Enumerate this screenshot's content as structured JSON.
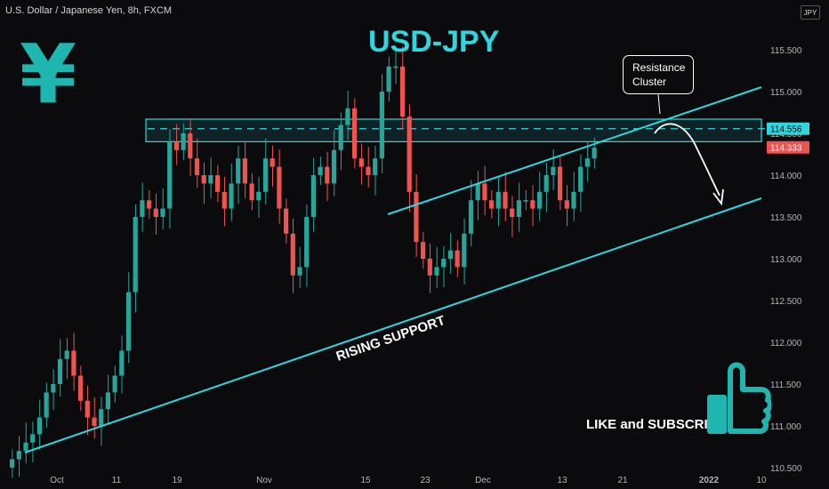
{
  "header": {
    "symbol_line": "U.S. Dollar / Japanese Yen, 8h, FXCM",
    "currency_badge": "JPY",
    "corner_value": "0"
  },
  "annotations": {
    "title": "USD-JPY",
    "yen_symbol": "¥",
    "callout_line1": "Resistance",
    "callout_line2": "Cluster",
    "support_label": "RISING SUPPORT",
    "cta": "LIKE and SUBSCRIBE"
  },
  "colors": {
    "background": "#0b0b0d",
    "bull": "#26a69a",
    "bear": "#ef5350",
    "accent": "#2fd6de",
    "text": "#d1d4dc"
  },
  "icons": [
    "yen-icon",
    "thumbs-up-icon"
  ],
  "chart_data": {
    "type": "candlestick",
    "title": "USD-JPY",
    "x_ticks": [
      "Oct",
      "11",
      "19",
      "Nov",
      "15",
      "23",
      "Dec",
      "13",
      "21",
      "2022",
      "10"
    ],
    "y_ticks": [
      "110.500",
      "111.000",
      "111.500",
      "112.000",
      "112.500",
      "113.000",
      "113.500",
      "114.000",
      "114.500",
      "115.000",
      "115.500"
    ],
    "ylim": [
      110.5,
      115.75
    ],
    "price_tags": [
      {
        "label": "114.556",
        "value": 114.556,
        "color": "#2fd6de"
      },
      {
        "label": "114.333",
        "value": 114.333,
        "color": "#ef5350"
      }
    ],
    "resistance_zone": [
      114.4,
      114.67
    ],
    "resistance_dashed": 114.556,
    "channel_upper": {
      "start": {
        "bar": 52,
        "value": 113.7
      },
      "end": {
        "bar": 100,
        "value": 115.05
      }
    },
    "channel_lower": {
      "start": {
        "bar": 0,
        "value": 110.72
      },
      "end": {
        "bar": 100,
        "value": 113.72
      }
    },
    "closes": [
      110.6,
      110.7,
      110.8,
      110.9,
      111.1,
      111.4,
      111.5,
      111.8,
      111.9,
      111.6,
      111.3,
      111.1,
      111.0,
      111.2,
      111.4,
      111.6,
      111.9,
      112.6,
      113.5,
      113.7,
      113.6,
      113.5,
      113.6,
      114.4,
      114.3,
      114.5,
      114.2,
      114.0,
      113.9,
      114.0,
      113.8,
      113.6,
      113.9,
      114.2,
      113.9,
      113.7,
      113.8,
      114.2,
      114.1,
      113.6,
      113.3,
      112.8,
      112.9,
      113.5,
      114.0,
      114.1,
      113.9,
      114.3,
      114.6,
      114.8,
      114.2,
      114.1,
      114.0,
      114.2,
      115.0,
      115.3,
      115.3,
      114.7,
      113.8,
      113.2,
      113.0,
      112.8,
      112.9,
      113.0,
      113.1,
      112.9,
      113.3,
      113.7,
      113.9,
      113.7,
      113.6,
      113.8,
      113.6,
      113.5,
      113.7,
      113.7,
      113.6,
      113.8,
      114.0,
      114.1,
      113.7,
      113.6,
      113.8,
      114.1,
      114.2,
      114.33
    ]
  }
}
